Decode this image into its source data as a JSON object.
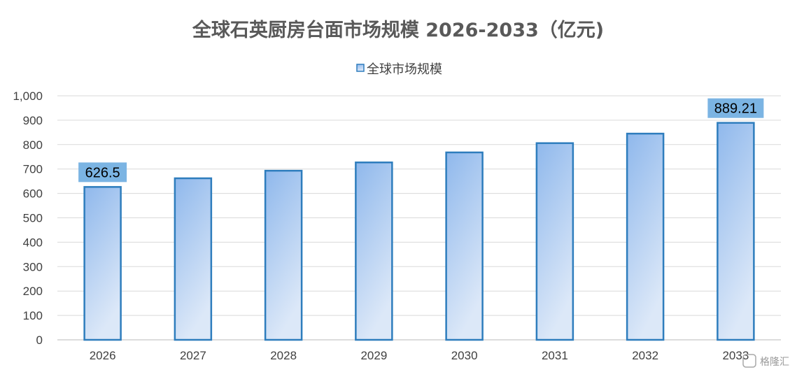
{
  "chart_data": {
    "type": "bar",
    "title": "全球石英厨房台面市场规模 2026-2033（亿元)",
    "legend": {
      "position": "top",
      "entries": [
        "全球市场规模"
      ]
    },
    "categories": [
      "2026",
      "2027",
      "2028",
      "2029",
      "2030",
      "2031",
      "2032",
      "2033"
    ],
    "series": [
      {
        "name": "全球市场规模",
        "values": [
          626.5,
          662,
          693,
          727,
          768,
          806,
          845,
          889.21
        ]
      }
    ],
    "data_labels": [
      {
        "category": "2026",
        "text": "626.5"
      },
      {
        "category": "2033",
        "text": "889.21"
      }
    ],
    "y_ticks": [
      "0",
      "100",
      "200",
      "300",
      "400",
      "500",
      "600",
      "700",
      "800",
      "900",
      "1,000"
    ],
    "ylim": [
      0,
      1000
    ],
    "grid": true,
    "colors": {
      "bar_top": "#8fb8ec",
      "bar_bottom": "#dce8f8",
      "bar_border": "#2e7dbd",
      "label_bg": "#7bb4e3",
      "grid": "#d9d9d9"
    }
  },
  "watermark": "格隆汇"
}
